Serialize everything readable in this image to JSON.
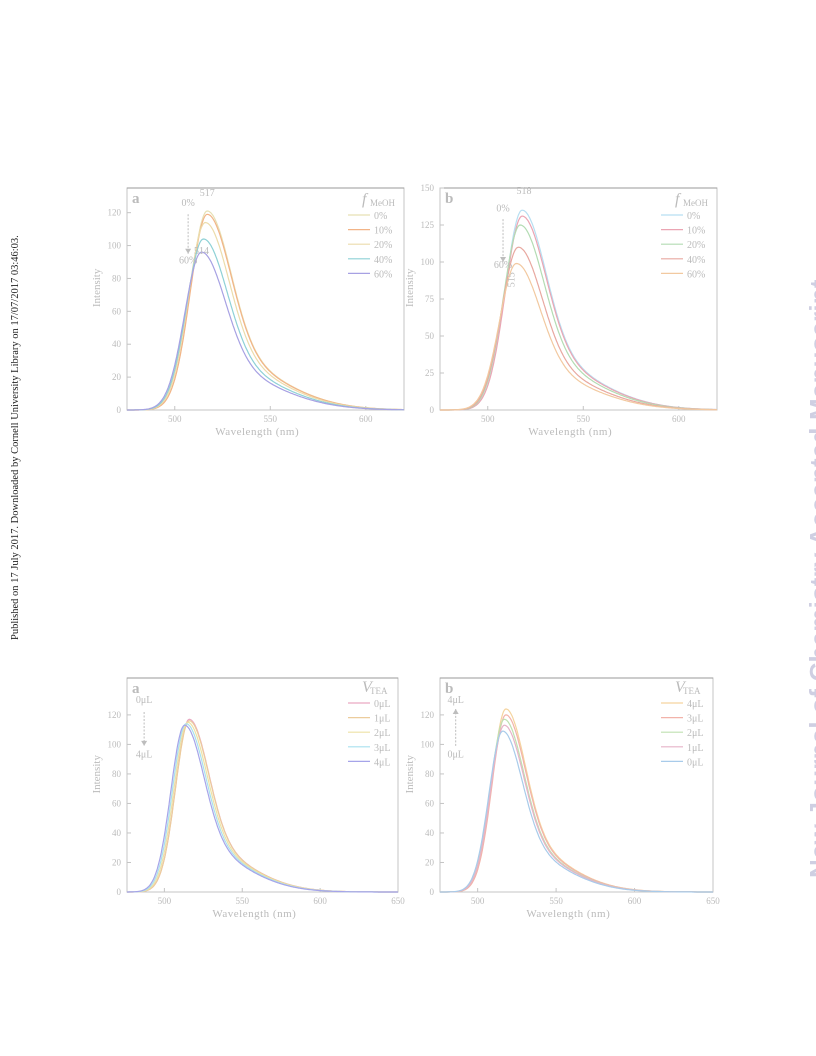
{
  "side_note": "Published on 17 July 2017. Downloaded by Cornell University Library on 17/07/2017 03:46:03.",
  "watermark": "New Journal of Chemistry Accepted Manuscript",
  "chart_data": [
    {
      "type": "line",
      "panel_letter": "a",
      "xlabel": "Wavelength (nm)",
      "ylabel": "Intensity",
      "xlim": [
        475,
        620
      ],
      "ylim": [
        0,
        135
      ],
      "xticks": [
        500,
        550,
        600
      ],
      "yticks": [
        0,
        20,
        40,
        60,
        80,
        100,
        120
      ],
      "legend": {
        "title_main": "f",
        "title_sub": "MeOH",
        "position": "top-right"
      },
      "annotations": [
        {
          "text": "517",
          "x": 517,
          "y": 130
        },
        {
          "text": "514",
          "x": 514,
          "y": 95
        },
        {
          "text": "0%",
          "x": 507,
          "y": 124
        },
        {
          "text": "60%",
          "x": 507,
          "y": 89
        }
      ],
      "arrow": {
        "x": 507,
        "y_from": 119,
        "y_to": 95,
        "direction": "down"
      },
      "series": [
        {
          "name": "0%",
          "color": "#e6e0b4",
          "peak_x": 517,
          "peak_y": 121
        },
        {
          "name": "10%",
          "color": "#f2b487",
          "peak_x": 517,
          "peak_y": 119
        },
        {
          "name": "20%",
          "color": "#ecdcab",
          "peak_x": 516,
          "peak_y": 114
        },
        {
          "name": "40%",
          "color": "#8ed1d6",
          "peak_x": 515,
          "peak_y": 104
        },
        {
          "name": "60%",
          "color": "#a7a1e3",
          "peak_x": 514,
          "peak_y": 96
        }
      ]
    },
    {
      "type": "line",
      "panel_letter": "b",
      "xlabel": "Wavelength (nm)",
      "ylabel": "Intensity",
      "xlim": [
        475,
        620
      ],
      "ylim": [
        0,
        150
      ],
      "xticks": [
        500,
        550,
        600
      ],
      "yticks": [
        0,
        25,
        50,
        75,
        100,
        125,
        150
      ],
      "legend": {
        "title_main": "f",
        "title_sub": "MeOH",
        "position": "top-right"
      },
      "annotations": [
        {
          "text": "518",
          "x": 519,
          "y": 146
        },
        {
          "text": "515",
          "x": 514,
          "y": 88
        },
        {
          "text": "0%",
          "x": 508,
          "y": 134
        },
        {
          "text": "60%",
          "x": 508,
          "y": 96
        }
      ],
      "arrow": {
        "x": 508,
        "y_from": 129,
        "y_to": 100,
        "direction": "down"
      },
      "series": [
        {
          "name": "0%",
          "color": "#b7dff2",
          "peak_x": 518,
          "peak_y": 135
        },
        {
          "name": "10%",
          "color": "#eba5b3",
          "peak_x": 518,
          "peak_y": 131
        },
        {
          "name": "20%",
          "color": "#b3dcb3",
          "peak_x": 517,
          "peak_y": 125
        },
        {
          "name": "40%",
          "color": "#e8a8a0",
          "peak_x": 516,
          "peak_y": 110
        },
        {
          "name": "60%",
          "color": "#f2c9a0",
          "peak_x": 515,
          "peak_y": 99
        }
      ]
    },
    {
      "type": "line",
      "panel_letter": "a",
      "xlabel": "Wavelength (nm)",
      "ylabel": "Intensity",
      "xlim": [
        476,
        650
      ],
      "ylim": [
        0,
        145
      ],
      "xticks": [
        500,
        550,
        600,
        650
      ],
      "yticks": [
        0,
        20,
        40,
        60,
        80,
        100,
        120
      ],
      "legend": {
        "title_main": "V",
        "title_sub": "TEA",
        "position": "top-right"
      },
      "annotations": [
        {
          "text": "0μL",
          "x": 487,
          "y": 128
        },
        {
          "text": "4μL",
          "x": 487,
          "y": 91
        }
      ],
      "arrow": {
        "x": 487,
        "y_from": 122,
        "y_to": 99,
        "direction": "down"
      },
      "series": [
        {
          "name": "0μL",
          "color": "#e9a9c2",
          "peak_x": 516,
          "peak_y": 117
        },
        {
          "name": "1μL",
          "color": "#eccc9c",
          "peak_x": 516,
          "peak_y": 116
        },
        {
          "name": "2μL",
          "color": "#ede2a5",
          "peak_x": 515,
          "peak_y": 115
        },
        {
          "name": "3μL",
          "color": "#a9e0ef",
          "peak_x": 514,
          "peak_y": 114
        },
        {
          "name": "4μL",
          "color": "#a6a4e9",
          "peak_x": 513,
          "peak_y": 113
        }
      ]
    },
    {
      "type": "line",
      "panel_letter": "b",
      "xlabel": "Wavelength (nm)",
      "ylabel": "Intensity",
      "xlim": [
        476,
        650
      ],
      "ylim": [
        0,
        145
      ],
      "xticks": [
        500,
        550,
        600,
        650
      ],
      "yticks": [
        0,
        20,
        40,
        60,
        80,
        100,
        120
      ],
      "legend": {
        "title_main": "V",
        "title_sub": "TEA",
        "position": "top-right"
      },
      "annotations": [
        {
          "text": "4μL",
          "x": 486,
          "y": 128
        },
        {
          "text": "0μL",
          "x": 486,
          "y": 91
        }
      ],
      "arrow": {
        "x": 486,
        "y_from": 99,
        "y_to": 124,
        "direction": "up"
      },
      "series": [
        {
          "name": "4μL",
          "color": "#f5d49f",
          "peak_x": 518,
          "peak_y": 124
        },
        {
          "name": "3μL",
          "color": "#f2b3aa",
          "peak_x": 518,
          "peak_y": 120
        },
        {
          "name": "2μL",
          "color": "#bfe1b0",
          "peak_x": 517,
          "peak_y": 117
        },
        {
          "name": "1μL",
          "color": "#e6b3c8",
          "peak_x": 517,
          "peak_y": 113
        },
        {
          "name": "0μL",
          "color": "#a8cbea",
          "peak_x": 516,
          "peak_y": 109
        }
      ]
    }
  ]
}
